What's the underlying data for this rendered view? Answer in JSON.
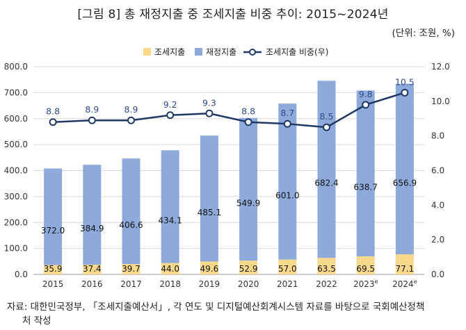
{
  "title": "[그림 8] 총 재정지출 중 조세지출 비중 추이: 2015~2024년",
  "unit": "(단위: 조원, %)",
  "source_line1": "자료: 대한민국정부, 「조세지출예산서」, 각 연도 및 디지털예산회계시스템 자료를 바탕으로 국회예산정책",
  "source_line2": "처 작성",
  "colors": {
    "tax_expenditure": "#f9d98c",
    "fiscal_expenditure": "#8eaadb",
    "ratio_line": "#1f3864",
    "label_text": "#1f3864"
  },
  "chart_data": {
    "type": "bar+line",
    "categories": [
      "2015",
      "2016",
      "2017",
      "2018",
      "2019",
      "2020",
      "2021",
      "2022",
      "2023e",
      "2024e"
    ],
    "category_labels": [
      "2015",
      "2016",
      "2017",
      "2018",
      "2019",
      "2020",
      "2021",
      "2022",
      "2023",
      "2024"
    ],
    "category_superscripts": [
      "",
      "",
      "",
      "",
      "",
      "",
      "",
      "",
      "e",
      "e"
    ],
    "series": [
      {
        "name": "조세지출",
        "type": "bar",
        "axis": "left",
        "values": [
          35.9,
          37.4,
          39.7,
          44.0,
          49.6,
          52.9,
          57.0,
          63.5,
          69.5,
          77.1
        ],
        "labels": [
          "35.9",
          "37.4",
          "39.7",
          "44.0",
          "49.6",
          "52.9",
          "57.0",
          "63.5",
          "69.5",
          "77.1"
        ]
      },
      {
        "name": "재정지출",
        "type": "bar",
        "axis": "left",
        "values": [
          372.0,
          384.9,
          406.6,
          434.1,
          485.1,
          549.9,
          601.0,
          682.4,
          638.7,
          656.9
        ],
        "labels": [
          "372.0",
          "384.9",
          "406.6",
          "434.1",
          "485.1",
          "549.9",
          "601.0",
          "682.4",
          "638.7",
          "656.9"
        ]
      },
      {
        "name": "조세지출 비중(우)",
        "type": "line",
        "axis": "right",
        "values": [
          8.8,
          8.9,
          8.9,
          9.2,
          9.3,
          8.8,
          8.7,
          8.5,
          9.8,
          10.5
        ],
        "labels": [
          "8.8",
          "8.9",
          "8.9",
          "9.2",
          "9.3",
          "8.8",
          "8.7",
          "8.5",
          "9.8",
          "10.5"
        ]
      }
    ],
    "left_axis": {
      "min": 0,
      "max": 800,
      "step": 100,
      "tick_labels": [
        "0.0",
        "100.0",
        "200.0",
        "300.0",
        "400.0",
        "500.0",
        "600.0",
        "700.0",
        "800.0"
      ]
    },
    "right_axis": {
      "min": 0,
      "max": 12,
      "step": 2,
      "tick_labels": [
        "0.0",
        "2.0",
        "4.0",
        "6.0",
        "8.0",
        "10.0",
        "12.0"
      ]
    },
    "grid": true,
    "legend_position": "top-center",
    "bars_stacked": true
  }
}
